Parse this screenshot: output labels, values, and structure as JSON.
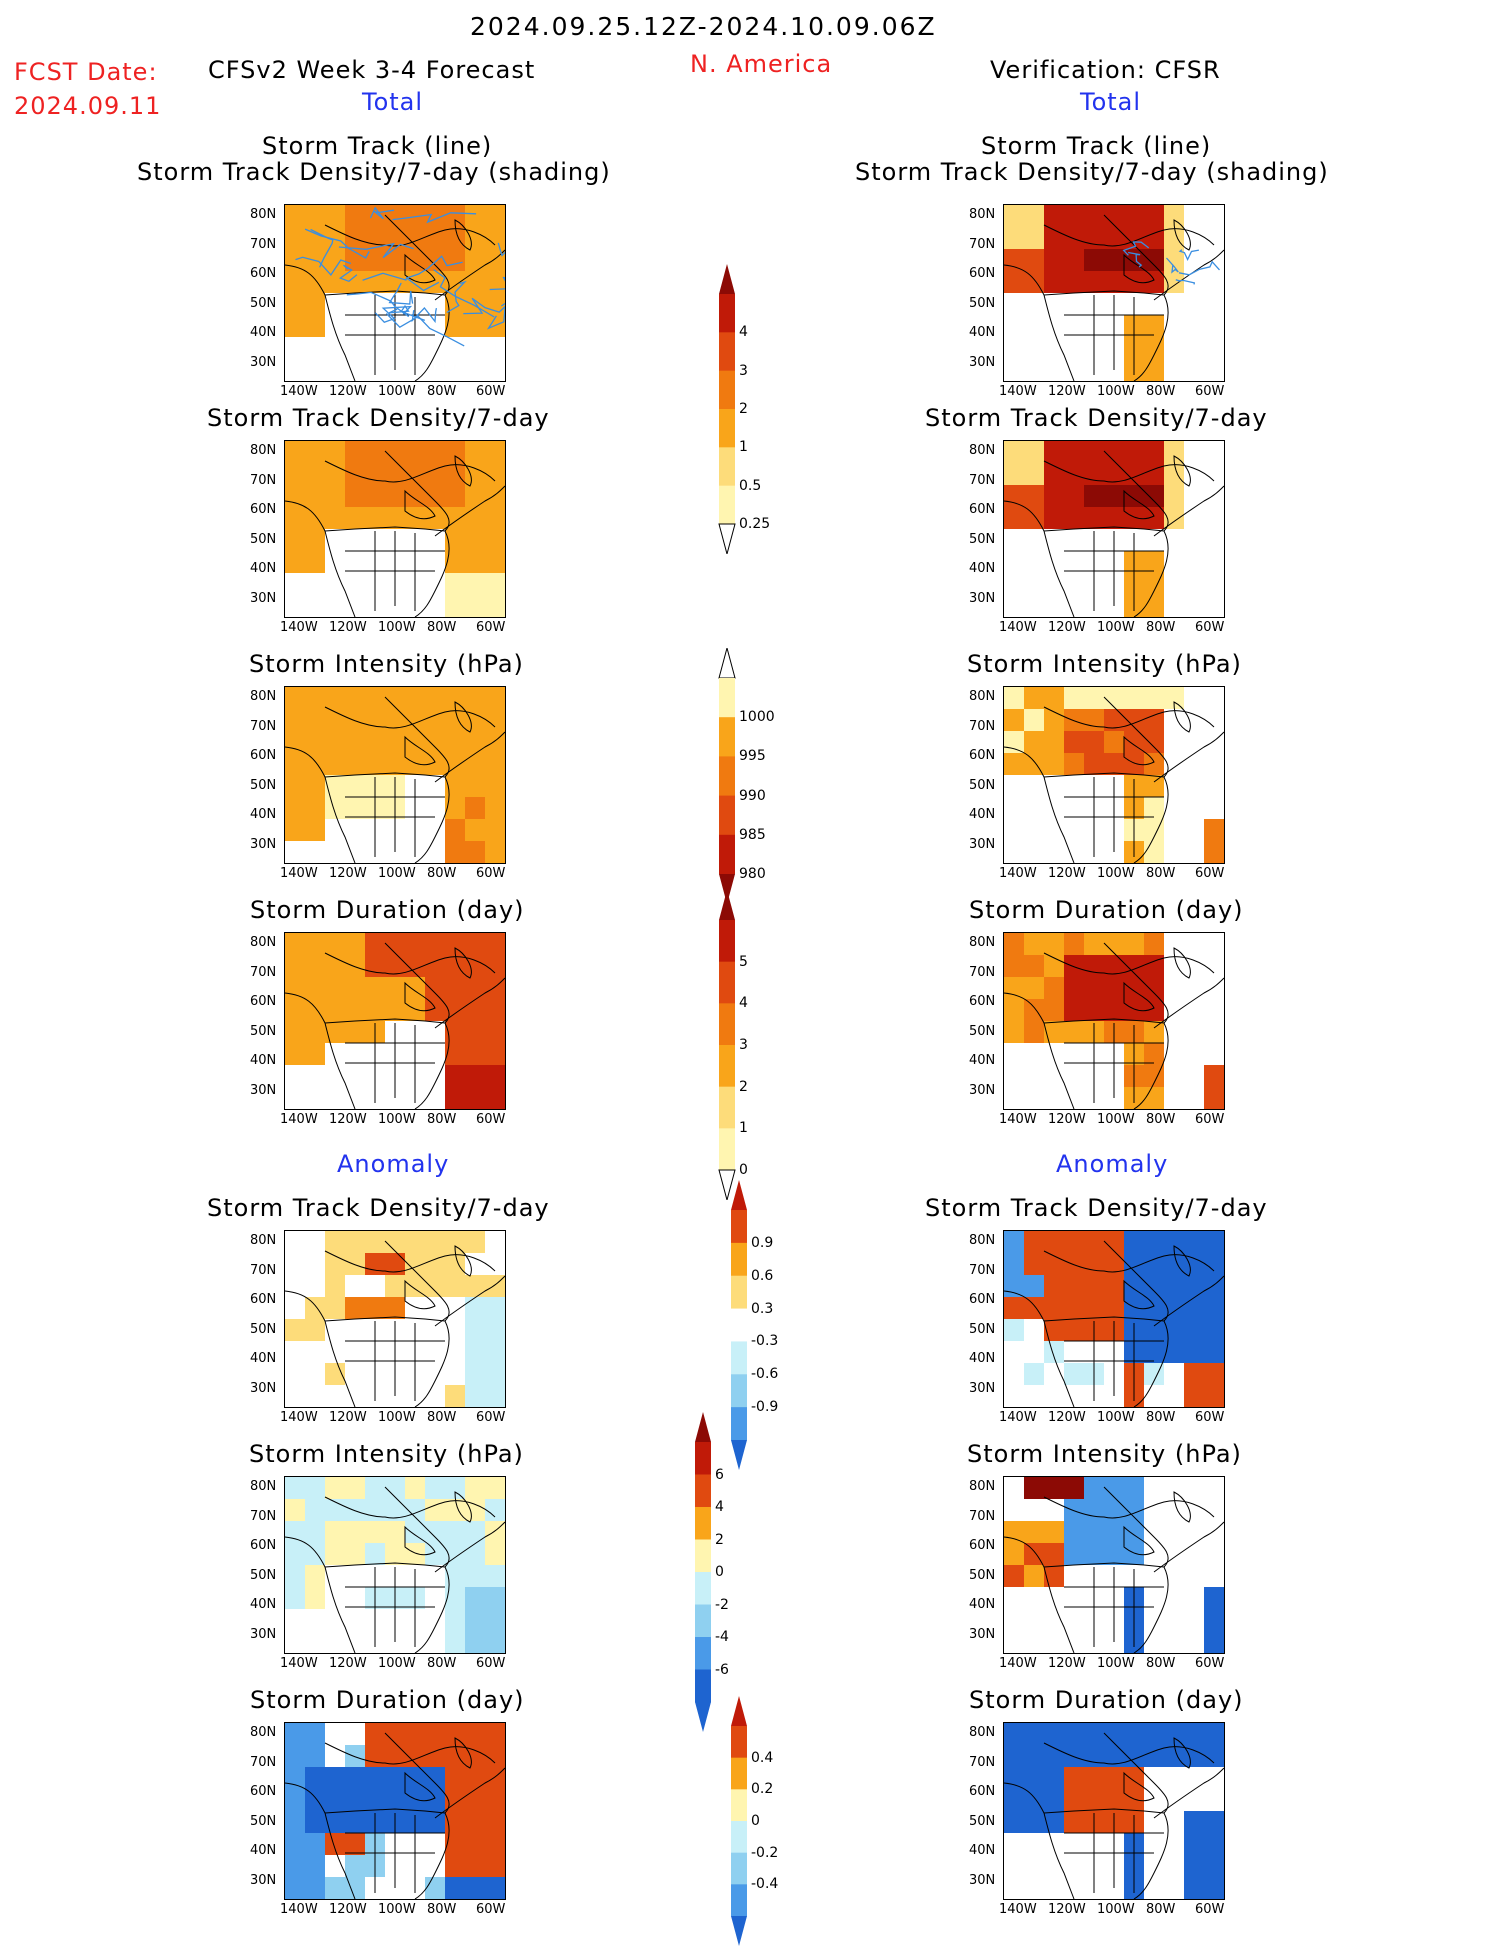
{
  "header": {
    "date_range": "2024.09.25.12Z-2024.10.09.06Z",
    "region": "N. America",
    "fcst_label": "FCST Date:",
    "fcst_date": "2024.09.11",
    "model": "CFSv2 Week 3-4 Forecast",
    "verification": "Verification: CFSR",
    "total_left": "Total",
    "total_right": "Total",
    "anomaly_left": "Anomaly",
    "anomaly_right": "Anomaly"
  },
  "panels": {
    "track_title1": "Storm Track (line)",
    "track_title2": "Storm Track Density/7-day (shading)",
    "density": "Storm Track Density/7-day",
    "intensity": "Storm Intensity (hPa)",
    "duration": "Storm Duration (day)"
  },
  "axes": {
    "lat": [
      "80N",
      "70N",
      "60N",
      "50N",
      "40N",
      "30N"
    ],
    "lon": [
      "140W",
      "120W",
      "100W",
      "80W",
      "60W"
    ]
  },
  "colorbars": {
    "density": [
      "4",
      "3",
      "2",
      "1",
      "0.5",
      "0.25"
    ],
    "intensity": [
      "1000",
      "995",
      "990",
      "985",
      "980"
    ],
    "duration": [
      "5",
      "4",
      "3",
      "2",
      "1",
      "0"
    ],
    "density_anom": [
      "0.9",
      "0.6",
      "0.3",
      "-0.3",
      "-0.6",
      "-0.9"
    ],
    "intensity_anom": [
      "6",
      "4",
      "2",
      "0",
      "-2",
      "-4",
      "-6"
    ],
    "duration_anom": [
      "0.4",
      "0.2",
      "0",
      "-0.2",
      "-0.4"
    ]
  },
  "colors": {
    "warm": [
      "#fff5b0",
      "#fddc7a",
      "#f9a51a",
      "#f07a10",
      "#e04a10",
      "#c01a08",
      "#8c0a05"
    ],
    "cool": [
      "#c8f0f8",
      "#8fd0f0",
      "#4a9ae8",
      "#1e64d0"
    ]
  }
}
